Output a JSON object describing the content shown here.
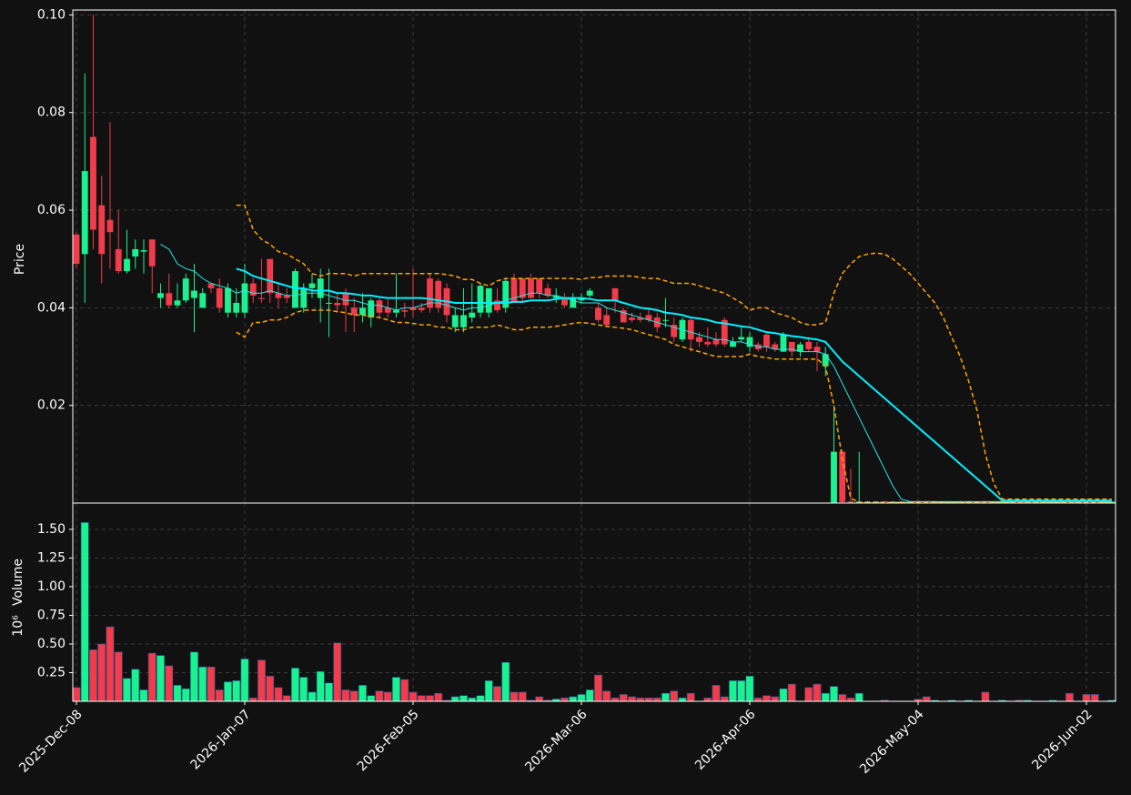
{
  "chart_data": {
    "type": "candlestick",
    "ylabel": "Price",
    "up_color": "#19f28f",
    "down_color": "#f03c4b",
    "grid": true,
    "xlim": [
      -0.43,
      123.46
    ],
    "xticks": [
      {
        "value": 0,
        "label": "2025-Dec-08"
      },
      {
        "value": 20,
        "label": "2026-Jan-07"
      },
      {
        "value": 40,
        "label": "2026-Feb-05"
      },
      {
        "value": 60,
        "label": "2026-Mar-06"
      },
      {
        "value": 80,
        "label": "2026-Apr-06"
      },
      {
        "value": 100,
        "label": "2026-May-04"
      },
      {
        "value": 120,
        "label": "2026-Jun-02"
      }
    ],
    "ylim": [
      0,
      0.101
    ],
    "yticks": [
      0.02,
      0.04,
      0.06,
      0.08,
      {
        "value": 0.1,
        "label": "0.10"
      }
    ],
    "open": [
      0.055,
      0.051,
      0.075,
      0.061,
      0.058,
      0.052,
      0.0475,
      0.0505,
      0.0515,
      0.054,
      0.042,
      0.043,
      0.0405,
      0.0415,
      0.042,
      0.04,
      0.045,
      0.044,
      0.039,
      0.039,
      0.039,
      0.045,
      0.042,
      0.05,
      0.043,
      0.0425,
      0.04,
      0.04,
      0.044,
      0.042,
      0.041,
      0.041,
      0.043,
      0.04,
      0.0385,
      0.038,
      0.0415,
      0.04,
      0.039,
      0.0395,
      0.04,
      0.04,
      0.046,
      0.0455,
      0.044,
      0.036,
      0.036,
      0.038,
      0.039,
      0.039,
      0.0415,
      0.04,
      0.046,
      0.046,
      0.046,
      0.046,
      0.044,
      0.042,
      0.042,
      0.04,
      0.0415,
      0.0425,
      0.04,
      0.0385,
      0.044,
      0.0395,
      0.038,
      0.038,
      0.0385,
      0.038,
      0.0375,
      0.0365,
      0.0335,
      0.0375,
      0.034,
      0.033,
      0.0335,
      0.0375,
      0.032,
      0.0335,
      0.032,
      0.0325,
      0.0345,
      0.0325,
      0.031,
      0.033,
      0.031,
      0.033,
      0.032,
      0.028,
      0.0001,
      0.0105,
      0.0003,
      0.0002,
      0.0003,
      0.0003,
      0.0004,
      0.0003,
      0.0003,
      0.0003,
      0.0004,
      0.0004,
      0.0003,
      0.0003,
      0.0003,
      0.0003,
      0.0003,
      0.0003,
      0.0004,
      0.0003,
      0.0003,
      0.0003,
      0.0004,
      0.0003,
      0.0003,
      0.0003,
      0.0003,
      0.0003,
      0.0004,
      0.0003,
      0.0004,
      0.0004,
      0.0003,
      0.0003
    ],
    "high": [
      0.0555,
      0.088,
      0.1,
      0.067,
      0.078,
      0.06,
      0.056,
      0.054,
      0.054,
      0.054,
      0.045,
      0.047,
      0.045,
      0.047,
      0.049,
      0.044,
      0.045,
      0.046,
      0.045,
      0.044,
      0.049,
      0.046,
      0.05,
      0.05,
      0.045,
      0.044,
      0.048,
      0.045,
      0.047,
      0.048,
      0.048,
      0.043,
      0.044,
      0.042,
      0.043,
      0.042,
      0.042,
      0.042,
      0.047,
      0.041,
      0.048,
      0.041,
      0.047,
      0.046,
      0.045,
      0.04,
      0.044,
      0.045,
      0.045,
      0.044,
      0.044,
      0.046,
      0.047,
      0.046,
      0.047,
      0.046,
      0.045,
      0.044,
      0.043,
      0.043,
      0.043,
      0.044,
      0.041,
      0.04,
      0.044,
      0.04,
      0.039,
      0.039,
      0.04,
      0.039,
      0.042,
      0.038,
      0.038,
      0.038,
      0.035,
      0.036,
      0.035,
      0.038,
      0.034,
      0.036,
      0.035,
      0.033,
      0.035,
      0.033,
      0.035,
      0.033,
      0.033,
      0.034,
      0.033,
      0.032,
      0.02,
      0.011,
      0.007,
      0.0105,
      0.0004,
      0.0004,
      0.0004,
      0.0004,
      0.0004,
      0.0004,
      0.0004,
      0.0004,
      0.0004,
      0.0004,
      0.0004,
      0.0004,
      0.0004,
      0.0004,
      0.0004,
      0.0004,
      0.0004,
      0.0004,
      0.0004,
      0.0004,
      0.0004,
      0.0004,
      0.0004,
      0.0004,
      0.0004,
      0.0004,
      0.0004,
      0.0004,
      0.0004,
      0.0004
    ],
    "low": [
      0.048,
      0.041,
      0.052,
      0.045,
      0.048,
      0.047,
      0.047,
      0.048,
      0.047,
      0.043,
      0.04,
      0.04,
      0.04,
      0.041,
      0.035,
      0.04,
      0.043,
      0.039,
      0.038,
      0.038,
      0.038,
      0.041,
      0.041,
      0.041,
      0.04,
      0.041,
      0.04,
      0.039,
      0.042,
      0.037,
      0.034,
      0.039,
      0.035,
      0.035,
      0.037,
      0.036,
      0.038,
      0.038,
      0.038,
      0.038,
      0.038,
      0.039,
      0.039,
      0.039,
      0.037,
      0.035,
      0.035,
      0.037,
      0.038,
      0.038,
      0.039,
      0.039,
      0.041,
      0.041,
      0.042,
      0.042,
      0.042,
      0.041,
      0.04,
      0.04,
      0.041,
      0.042,
      0.037,
      0.036,
      0.039,
      0.037,
      0.037,
      0.037,
      0.037,
      0.035,
      0.036,
      0.033,
      0.033,
      0.031,
      0.032,
      0.032,
      0.032,
      0.032,
      0.032,
      0.033,
      0.031,
      0.031,
      0.031,
      0.031,
      0.031,
      0.03,
      0.03,
      0.031,
      0.027,
      0.026,
      0.0001,
      0.0001,
      0.0001,
      0.0001,
      0.0002,
      0.0002,
      0.0002,
      0.0002,
      0.0002,
      0.0002,
      0.0002,
      0.0002,
      0.0002,
      0.0002,
      0.0002,
      0.0002,
      0.0002,
      0.0002,
      0.0002,
      0.0002,
      0.0002,
      0.0002,
      0.0002,
      0.0002,
      0.0002,
      0.0002,
      0.0002,
      0.0002,
      0.0002,
      0.0002,
      0.0002,
      0.0002,
      0.0002,
      0.0002
    ],
    "close": [
      0.049,
      0.068,
      0.056,
      0.051,
      0.0555,
      0.0475,
      0.05,
      0.052,
      0.0518,
      0.0485,
      0.043,
      0.0405,
      0.0415,
      0.046,
      0.0435,
      0.043,
      0.044,
      0.04,
      0.044,
      0.041,
      0.045,
      0.0425,
      0.0418,
      0.043,
      0.042,
      0.042,
      0.0475,
      0.044,
      0.045,
      0.046,
      0.041,
      0.0405,
      0.0405,
      0.0385,
      0.04,
      0.0415,
      0.039,
      0.039,
      0.0395,
      0.0392,
      0.0395,
      0.0395,
      0.04,
      0.04,
      0.0385,
      0.0385,
      0.0385,
      0.039,
      0.0445,
      0.044,
      0.0395,
      0.0455,
      0.041,
      0.042,
      0.042,
      0.043,
      0.0425,
      0.0425,
      0.0405,
      0.042,
      0.042,
      0.0435,
      0.0375,
      0.0365,
      0.0415,
      0.037,
      0.0375,
      0.0375,
      0.0375,
      0.036,
      0.0375,
      0.034,
      0.0375,
      0.0335,
      0.033,
      0.0325,
      0.0325,
      0.0325,
      0.033,
      0.034,
      0.034,
      0.0315,
      0.032,
      0.0315,
      0.0345,
      0.031,
      0.0325,
      0.0315,
      0.031,
      0.0305,
      0.0105,
      0.0002,
      0.0002,
      0.0003,
      0.0003,
      0.0003,
      0.0003,
      0.0003,
      0.0003,
      0.0003,
      0.0003,
      0.0003,
      0.0003,
      0.0003,
      0.0003,
      0.0003,
      0.0003,
      0.0003,
      0.0003,
      0.0003,
      0.0003,
      0.0003,
      0.0003,
      0.0003,
      0.0003,
      0.0003,
      0.0003,
      0.0003,
      0.0003,
      0.0003,
      0.0003,
      0.0003,
      0.0003,
      0.0003
    ],
    "overlays": [
      {
        "color": "#2ee6e6",
        "width": 1,
        "dashed": false,
        "values": [
          null,
          null,
          null,
          null,
          null,
          null,
          null,
          null,
          null,
          null,
          0.053,
          0.052,
          0.049,
          0.048,
          0.0475,
          0.046,
          0.045,
          0.0445,
          0.044,
          0.043,
          0.0435,
          0.043,
          0.043,
          0.0435,
          0.043,
          0.0425,
          0.0425,
          0.043,
          0.043,
          0.043,
          0.0425,
          0.042,
          0.0415,
          0.0415,
          0.041,
          0.0405,
          0.0405,
          0.04,
          0.0395,
          0.04,
          0.04,
          0.0405,
          0.041,
          0.041,
          0.0405,
          0.04,
          0.0395,
          0.04,
          0.04,
          0.0405,
          0.041,
          0.0415,
          0.042,
          0.0425,
          0.043,
          0.043,
          0.0425,
          0.0425,
          0.042,
          0.0415,
          0.041,
          0.041,
          0.041,
          0.04,
          0.0395,
          0.039,
          0.0385,
          0.038,
          0.0375,
          0.037,
          0.0365,
          0.036,
          0.0355,
          0.035,
          0.0345,
          0.034,
          0.0335,
          0.0335,
          0.033,
          0.033,
          0.0325,
          0.032,
          0.032,
          0.0315,
          0.0315,
          0.0315,
          0.031,
          0.031,
          0.031,
          0.0305,
          0.028,
          0.0245,
          0.021,
          0.0175,
          0.014,
          0.0105,
          0.007,
          0.0035,
          0.0008,
          0.0003,
          0.0003,
          0.0003,
          0.0003,
          0.0003,
          0.0003,
          0.0003,
          0.0003,
          0.0003,
          0.0003,
          0.0003,
          0.0003,
          0.0003,
          0.0003,
          0.0003,
          0.0003,
          0.0003,
          0.0003,
          0.0003,
          0.0003,
          0.0003,
          0.0003,
          0.0003,
          0.0003,
          0.0003
        ]
      },
      {
        "color": "#00f0ff",
        "width": 2,
        "dashed": false,
        "values": [
          null,
          null,
          null,
          null,
          null,
          null,
          null,
          null,
          null,
          null,
          null,
          null,
          null,
          null,
          null,
          null,
          null,
          null,
          null,
          0.048,
          0.0475,
          0.0465,
          0.046,
          0.0455,
          0.045,
          0.0445,
          0.044,
          0.044,
          0.0435,
          0.0435,
          0.0435,
          0.043,
          0.043,
          0.0428,
          0.0425,
          0.0425,
          0.0422,
          0.042,
          0.042,
          0.042,
          0.042,
          0.042,
          0.0418,
          0.0415,
          0.0413,
          0.041,
          0.041,
          0.041,
          0.041,
          0.041,
          0.041,
          0.041,
          0.0412,
          0.0412,
          0.0415,
          0.0415,
          0.0415,
          0.0418,
          0.042,
          0.042,
          0.042,
          0.0418,
          0.0415,
          0.0415,
          0.0415,
          0.041,
          0.0405,
          0.04,
          0.0398,
          0.0395,
          0.039,
          0.0388,
          0.0385,
          0.038,
          0.0378,
          0.0375,
          0.037,
          0.0368,
          0.0365,
          0.0362,
          0.036,
          0.0355,
          0.035,
          0.0348,
          0.0345,
          0.0342,
          0.034,
          0.0337,
          0.0335,
          0.033,
          0.031,
          0.029,
          0.0275,
          0.026,
          0.0245,
          0.023,
          0.0215,
          0.02,
          0.0185,
          0.017,
          0.0155,
          0.014,
          0.0125,
          0.011,
          0.0095,
          0.008,
          0.0065,
          0.005,
          0.0035,
          0.002,
          0.0005,
          0.0005,
          0.0005,
          0.0005,
          0.0005,
          0.0005,
          0.0005,
          0.0005,
          0.0005,
          0.0005,
          0.0005,
          0.0005,
          0.0005,
          0.0005
        ]
      },
      {
        "color": "#ffa500",
        "width": 1.5,
        "dashed": true,
        "values": [
          null,
          null,
          null,
          null,
          null,
          null,
          null,
          null,
          null,
          null,
          null,
          null,
          null,
          null,
          null,
          null,
          null,
          null,
          null,
          0.061,
          0.061,
          0.056,
          0.054,
          0.053,
          0.0515,
          0.051,
          0.05,
          0.049,
          0.047,
          0.0465,
          0.047,
          0.047,
          0.047,
          0.0465,
          0.047,
          0.047,
          0.047,
          0.047,
          0.047,
          0.047,
          0.047,
          0.047,
          0.047,
          0.047,
          0.0468,
          0.0465,
          0.0458,
          0.0458,
          0.045,
          0.0445,
          0.0455,
          0.046,
          0.046,
          0.046,
          0.046,
          0.046,
          0.046,
          0.046,
          0.046,
          0.046,
          0.0458,
          0.0462,
          0.0462,
          0.0465,
          0.0465,
          0.0465,
          0.0465,
          0.0462,
          0.046,
          0.046,
          0.0455,
          0.045,
          0.045,
          0.045,
          0.0445,
          0.044,
          0.0435,
          0.043,
          0.042,
          0.041,
          0.0395,
          0.04,
          0.04,
          0.039,
          0.0385,
          0.038,
          0.037,
          0.0365,
          0.0365,
          0.037,
          0.043,
          0.047,
          0.049,
          0.0505,
          0.051,
          0.0512,
          0.051,
          0.05,
          0.0485,
          0.047,
          0.045,
          0.043,
          0.041,
          0.038,
          0.034,
          0.03,
          0.025,
          0.019,
          0.01,
          0.004,
          0.0008,
          0.0008,
          0.0008,
          0.0008,
          0.0008,
          0.0008,
          0.0008,
          0.0008,
          0.0008,
          0.0008,
          0.0008,
          0.0008,
          0.0008,
          0.0008
        ]
      },
      {
        "color": "#ffa500",
        "width": 1.5,
        "dashed": true,
        "values": [
          null,
          null,
          null,
          null,
          null,
          null,
          null,
          null,
          null,
          null,
          null,
          null,
          null,
          null,
          null,
          null,
          null,
          null,
          null,
          0.035,
          0.034,
          0.037,
          0.037,
          0.0375,
          0.0375,
          0.038,
          0.039,
          0.0395,
          0.0395,
          0.0395,
          0.0395,
          0.0392,
          0.039,
          0.0385,
          0.0385,
          0.0382,
          0.038,
          0.0375,
          0.037,
          0.037,
          0.0368,
          0.0365,
          0.0365,
          0.036,
          0.036,
          0.0355,
          0.0355,
          0.036,
          0.036,
          0.036,
          0.0365,
          0.036,
          0.0355,
          0.0355,
          0.036,
          0.036,
          0.036,
          0.0362,
          0.0365,
          0.0368,
          0.037,
          0.0368,
          0.0365,
          0.0362,
          0.036,
          0.0358,
          0.0355,
          0.035,
          0.0345,
          0.034,
          0.0335,
          0.0325,
          0.032,
          0.0315,
          0.031,
          0.0305,
          0.03,
          0.03,
          0.03,
          0.03,
          0.0305,
          0.03,
          0.0298,
          0.0295,
          0.0295,
          0.0295,
          0.0295,
          0.0295,
          0.0295,
          0.028,
          0.02,
          0.009,
          0.001,
          0.0001,
          0.0001,
          0.0001,
          0.0001,
          0.0001,
          0.0001,
          0.0001,
          0.0001,
          0.0001,
          0.0001,
          0.0001,
          0.0001,
          0.0001,
          0.0001,
          0.0001,
          0.0001,
          0.0001,
          0.0001,
          0.0001,
          0.0001,
          0.0001,
          0.0001,
          0.0001,
          0.0001,
          0.0001,
          0.0001,
          0.0001,
          0.0001,
          0.0001,
          0.0001,
          0.0001
        ]
      }
    ],
    "volume": {
      "ylabel": "Volume",
      "multiplier": "10⁶",
      "ylim": [
        0,
        1.73
      ],
      "yticks": [
        0.25,
        {
          "value": 0.5,
          "label": "0.50"
        },
        0.75,
        {
          "value": 1,
          "label": "1.00"
        },
        1.25,
        {
          "value": 1.5,
          "label": "1.50"
        }
      ],
      "values": [
        0.12,
        1.56,
        0.45,
        0.5,
        0.65,
        0.43,
        0.2,
        0.28,
        0.1,
        0.42,
        0.4,
        0.31,
        0.14,
        0.11,
        0.43,
        0.3,
        0.3,
        0.1,
        0.17,
        0.18,
        0.37,
        0.03,
        0.36,
        0.22,
        0.12,
        0.05,
        0.29,
        0.21,
        0.08,
        0.26,
        0.16,
        0.51,
        0.1,
        0.09,
        0.14,
        0.05,
        0.09,
        0.08,
        0.21,
        0.19,
        0.08,
        0.05,
        0.05,
        0.07,
        0.01,
        0.04,
        0.05,
        0.03,
        0.05,
        0.18,
        0.13,
        0.34,
        0.08,
        0.08,
        0.01,
        0.04,
        0.01,
        0.02,
        0.03,
        0.04,
        0.06,
        0.1,
        0.23,
        0.09,
        0.03,
        0.06,
        0.04,
        0.03,
        0.03,
        0.03,
        0.07,
        0.09,
        0.03,
        0.07,
        0,
        0.03,
        0.14,
        0.04,
        0.18,
        0.18,
        0.22,
        0.03,
        0.05,
        0.04,
        0.11,
        0.15,
        0,
        0.12,
        0.15,
        0.07,
        0.13,
        0.06,
        0.03,
        0.07,
        0,
        0,
        0.01,
        0,
        0,
        0,
        0.02,
        0.04,
        0.01,
        0,
        0.01,
        0,
        0.01,
        0,
        0.08,
        0,
        0.01,
        0,
        0.01,
        0.01,
        0,
        0,
        0.01,
        0,
        0.07,
        0,
        0.06,
        0.06,
        0,
        0.01
      ]
    }
  }
}
